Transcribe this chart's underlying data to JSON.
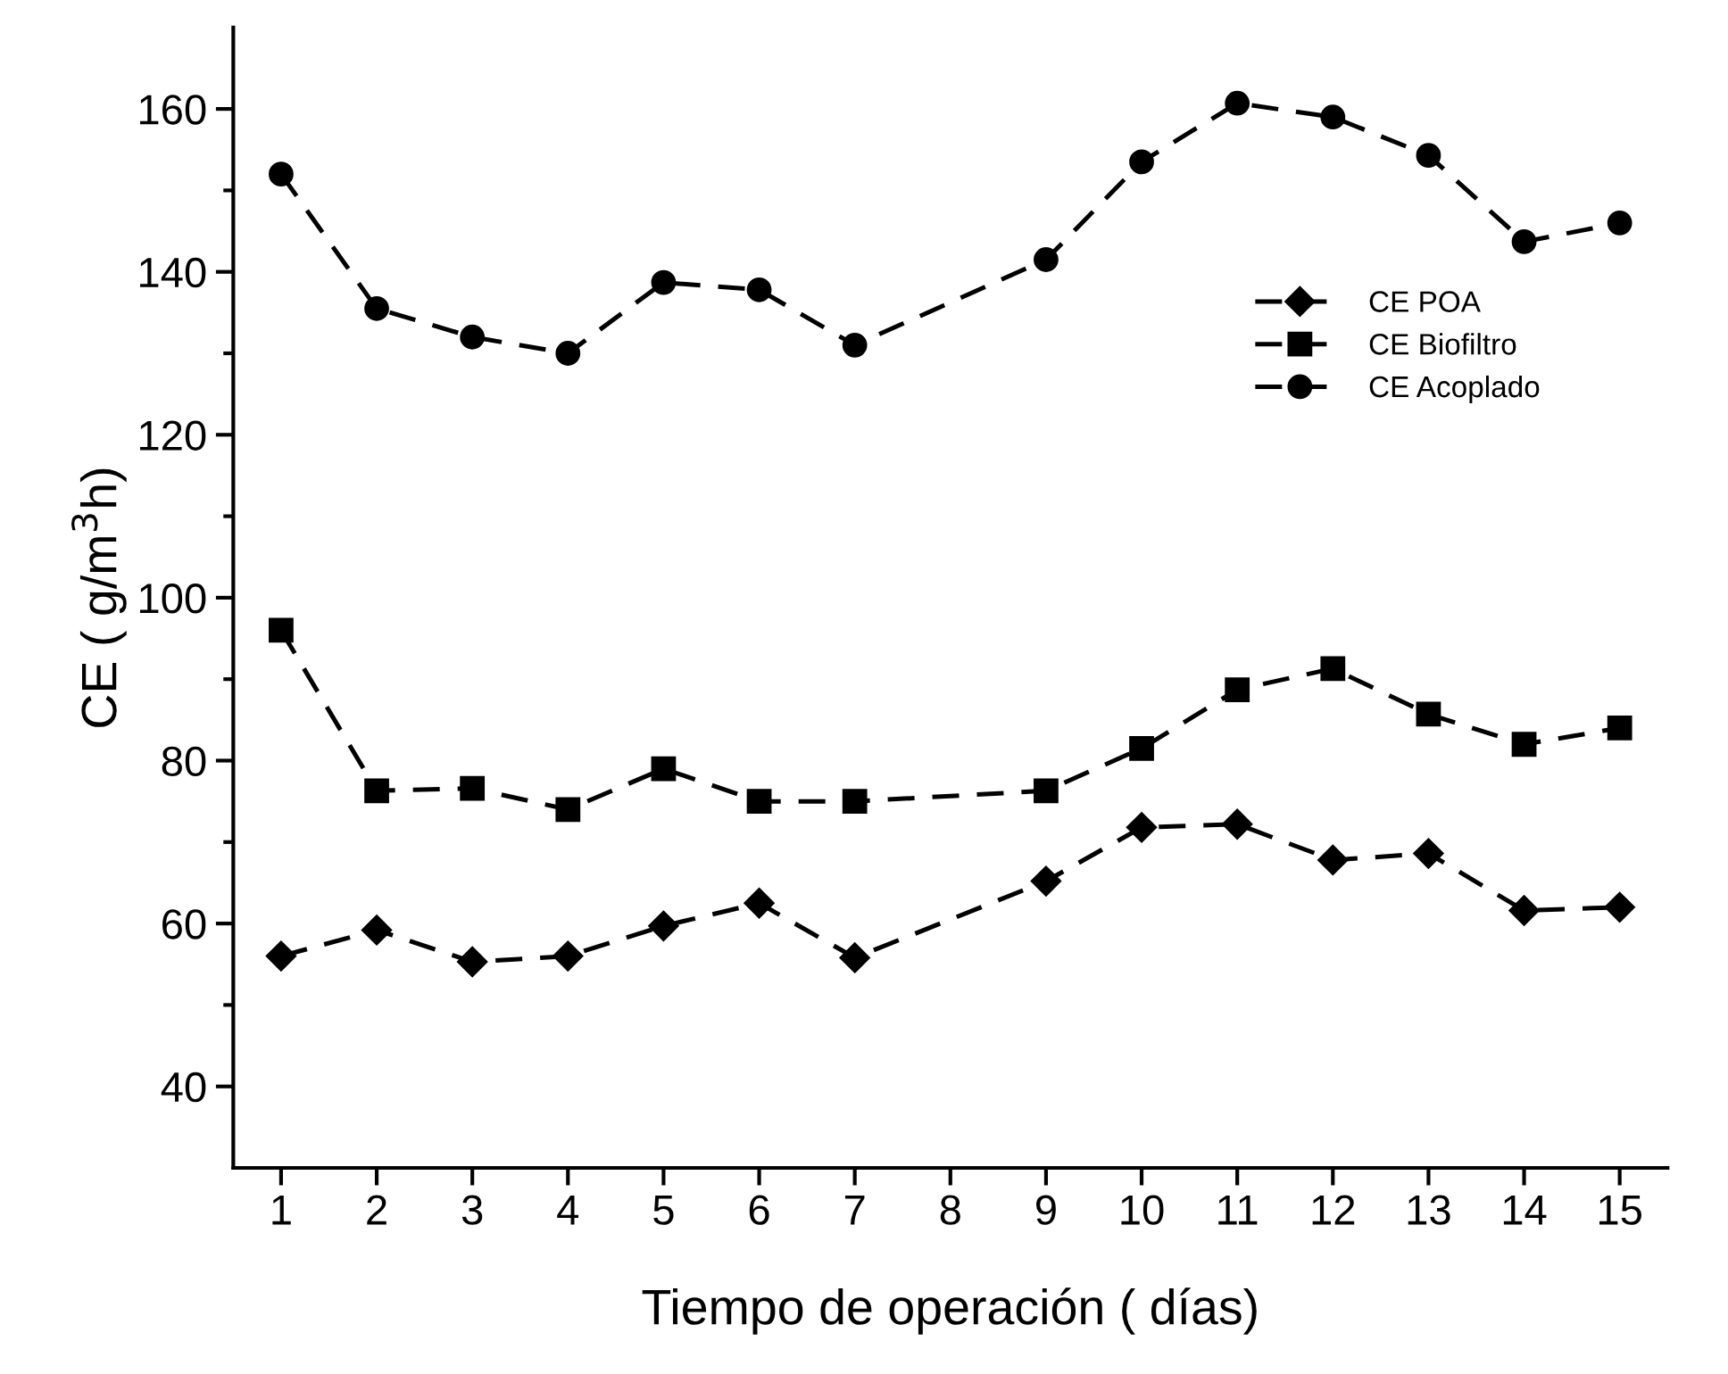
{
  "chart_data": {
    "type": "line",
    "xlabel": "Tiempo de operación ( días)",
    "ylabel": "CE ( g/m$^{3}$h)",
    "x": [
      1,
      2,
      3,
      4,
      5,
      6,
      7,
      9,
      10,
      11,
      12,
      13,
      14,
      15
    ],
    "series": [
      {
        "name": "CE POA",
        "color": "#000000",
        "marker": "diamond",
        "values": [
          56,
          59.2,
          55.3,
          56,
          59.7,
          62.5,
          55.8,
          65.2,
          71.8,
          72.2,
          67.8,
          68.6,
          61.6,
          62
        ]
      },
      {
        "name": "CE Biofiltro",
        "color": "#000000",
        "marker": "square",
        "values": [
          96,
          76.3,
          76.6,
          74,
          79,
          75,
          75,
          76.3,
          81.5,
          88.7,
          91.3,
          85.7,
          82,
          84
        ]
      },
      {
        "name": "CE Acoplado",
        "color": "#000000",
        "marker": "circle",
        "values": [
          152,
          135.5,
          132,
          130,
          138.7,
          137.8,
          131,
          141.5,
          153.5,
          160.7,
          159,
          154.3,
          143.7,
          146
        ]
      }
    ],
    "xlim": [
      0.5,
      15.5
    ],
    "xticks": [
      1,
      2,
      3,
      4,
      5,
      6,
      7,
      8,
      9,
      10,
      11,
      12,
      13,
      14,
      15
    ],
    "ylim": [
      30,
      170
    ],
    "yticks": [
      40,
      60,
      80,
      100,
      120,
      140,
      160
    ],
    "line_style": "dashed",
    "grid": false,
    "legend": "right"
  }
}
